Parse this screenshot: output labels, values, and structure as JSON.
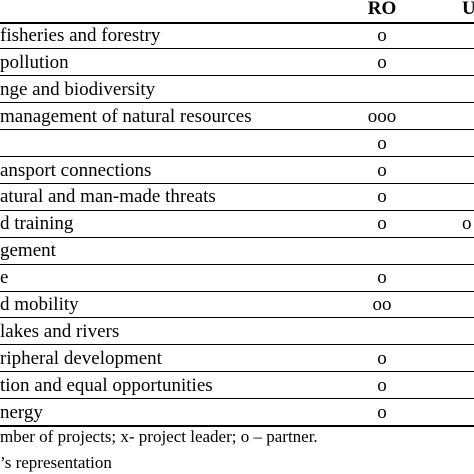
{
  "header": {
    "col_ro": "RO",
    "col_u": "U"
  },
  "rows": [
    {
      "label": "fisheries and forestry",
      "ro": "o",
      "u": ""
    },
    {
      "label": "pollution",
      "ro": "o",
      "u": ""
    },
    {
      "label": "nge and biodiversity",
      "ro": "",
      "u": ""
    },
    {
      "label": "management of natural resources",
      "ro": "ooo",
      "u": ""
    },
    {
      "label": "",
      "ro": "o",
      "u": ""
    },
    {
      "label": "ansport connections",
      "ro": "o",
      "u": ""
    },
    {
      "label": "atural and man-made threats",
      "ro": "o",
      "u": ""
    },
    {
      "label": "d training",
      "ro": "o",
      "u": "o"
    },
    {
      "label": "gement",
      "ro": "",
      "u": ""
    },
    {
      "label": "e",
      "ro": "o",
      "u": ""
    },
    {
      "label": "d mobility",
      "ro": "oo",
      "u": ""
    },
    {
      "label": "lakes and rivers",
      "ro": "",
      "u": ""
    },
    {
      "label": "ripheral development",
      "ro": "o",
      "u": ""
    },
    {
      "label": "tion and equal opportunities",
      "ro": "o",
      "u": ""
    },
    {
      "label": "nergy",
      "ro": "o",
      "u": ""
    }
  ],
  "notes": {
    "legend": "mber of projects; x- project leader; o – partner.",
    "source": "’s representation"
  }
}
